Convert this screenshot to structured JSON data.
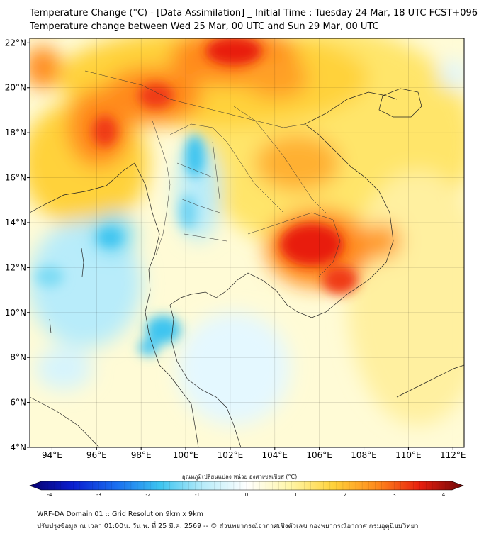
{
  "header": {
    "title_line1": "Temperature Change (°C) - [Data Assimilation] _ Initial Time : Tuesday 24 Mar, 18 UTC FCST+096",
    "title_line2": "Temperature change between Wed 25 Mar, 00 UTC and Sun 29 Mar, 00 UTC"
  },
  "map": {
    "lat_labels": [
      "22°N",
      "20°N",
      "18°N",
      "16°N",
      "14°N",
      "12°N",
      "10°N",
      "8°N",
      "6°N",
      "4°N"
    ],
    "lon_labels": [
      "94°E",
      "96°E",
      "98°E",
      "100°E",
      "102°E",
      "104°E",
      "106°E",
      "108°E",
      "110°E",
      "112°E"
    ],
    "lat_values": [
      22,
      20,
      18,
      16,
      14,
      12,
      10,
      8,
      6,
      4
    ],
    "lon_values": [
      94,
      96,
      98,
      100,
      102,
      104,
      106,
      108,
      110,
      112
    ]
  },
  "colorbar": {
    "title": "อุณหภูมิเปลี่ยนแปลง หน่วย องศาเซลเซียส (°C)",
    "ticks": [
      "-4",
      "-3",
      "-2",
      "-1",
      "0",
      "1",
      "2",
      "3",
      "4"
    ],
    "min": -4,
    "max": 4,
    "colors": [
      "#08006e",
      "#0a1fd0",
      "#1a6ff0",
      "#3cc4f0",
      "#b8ecfa",
      "#ffffff",
      "#fff6a8",
      "#ffd23a",
      "#ff8a1c",
      "#e81e0e",
      "#6e0808"
    ]
  },
  "footer": {
    "line1": "WRF-DA Domain 01 :: Grid Resolution 9km x 9km",
    "line2": "ปรับปรุงข้อมูล ณ เวลา 01:00น. วัน พ. ที่ 25 มี.ค. 2569 -- © ส่วนพยากรณ์อากาศเชิงตัวเลข กองพยากรณ์อากาศ กรมอุตุนิยมวิทยา"
  }
}
